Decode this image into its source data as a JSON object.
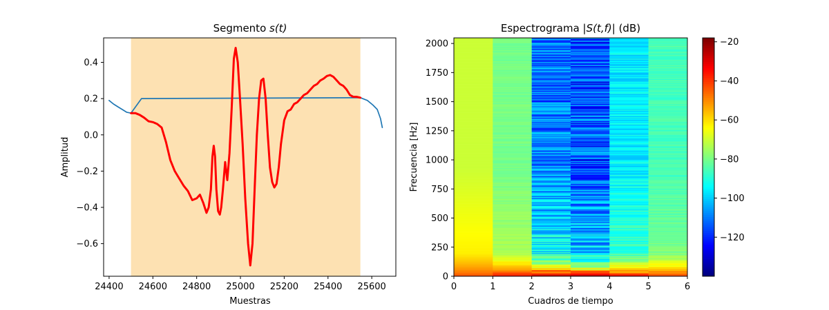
{
  "chart_data": [
    {
      "type": "line",
      "title": "Segmento s(t)",
      "title_prefix": "Segmento ",
      "title_var": "s(t)",
      "xlabel": "Muestras",
      "ylabel": "Amplitud",
      "xlim": [
        24375,
        25710
      ],
      "ylim": [
        -0.78,
        0.535
      ],
      "xticks": [
        24400,
        24600,
        24800,
        25000,
        25200,
        25400,
        25600
      ],
      "yticks": [
        -0.6,
        -0.4,
        -0.2,
        0.0,
        0.2,
        0.4
      ],
      "highlight": {
        "x_start": 24500,
        "x_end": 25548,
        "color": "#fde1b2"
      },
      "series": [
        {
          "color": "#1f77b4",
          "linewidth": 1.7,
          "points": [
            [
              24400,
              0.19
            ],
            [
              24420,
              0.17
            ],
            [
              24440,
              0.155
            ],
            [
              24460,
              0.14
            ],
            [
              24480,
              0.125
            ],
            [
              24500,
              0.12
            ],
            [
              24548,
              0.2
            ],
            [
              25548,
              0.205
            ],
            [
              25580,
              0.19
            ],
            [
              25605,
              0.165
            ],
            [
              25625,
              0.14
            ],
            [
              25640,
              0.09
            ],
            [
              25648,
              0.04
            ]
          ]
        },
        {
          "color": "#ff0000",
          "linewidth": 3,
          "points": [
            [
              24500,
              0.12
            ],
            [
              24520,
              0.12
            ],
            [
              24540,
              0.11
            ],
            [
              24560,
              0.095
            ],
            [
              24580,
              0.075
            ],
            [
              24600,
              0.07
            ],
            [
              24620,
              0.06
            ],
            [
              24640,
              0.04
            ],
            [
              24660,
              -0.04
            ],
            [
              24680,
              -0.14
            ],
            [
              24700,
              -0.2
            ],
            [
              24720,
              -0.24
            ],
            [
              24740,
              -0.28
            ],
            [
              24760,
              -0.31
            ],
            [
              24780,
              -0.36
            ],
            [
              24800,
              -0.35
            ],
            [
              24815,
              -0.33
            ],
            [
              24830,
              -0.375
            ],
            [
              24845,
              -0.43
            ],
            [
              24855,
              -0.4
            ],
            [
              24865,
              -0.3
            ],
            [
              24872,
              -0.12
            ],
            [
              24878,
              -0.06
            ],
            [
              24884,
              -0.12
            ],
            [
              24890,
              -0.3
            ],
            [
              24898,
              -0.42
            ],
            [
              24906,
              -0.44
            ],
            [
              24912,
              -0.4
            ],
            [
              24920,
              -0.3
            ],
            [
              24930,
              -0.15
            ],
            [
              24940,
              -0.25
            ],
            [
              24950,
              -0.1
            ],
            [
              24960,
              0.15
            ],
            [
              24970,
              0.42
            ],
            [
              24978,
              0.48
            ],
            [
              24988,
              0.4
            ],
            [
              24998,
              0.2
            ],
            [
              25010,
              -0.05
            ],
            [
              25022,
              -0.35
            ],
            [
              25035,
              -0.6
            ],
            [
              25045,
              -0.72
            ],
            [
              25055,
              -0.6
            ],
            [
              25065,
              -0.3
            ],
            [
              25075,
              0.0
            ],
            [
              25085,
              0.2
            ],
            [
              25095,
              0.3
            ],
            [
              25105,
              0.31
            ],
            [
              25115,
              0.2
            ],
            [
              25125,
              0.0
            ],
            [
              25135,
              -0.18
            ],
            [
              25145,
              -0.26
            ],
            [
              25155,
              -0.29
            ],
            [
              25165,
              -0.27
            ],
            [
              25175,
              -0.18
            ],
            [
              25185,
              -0.05
            ],
            [
              25200,
              0.08
            ],
            [
              25215,
              0.13
            ],
            [
              25230,
              0.14
            ],
            [
              25245,
              0.17
            ],
            [
              25260,
              0.18
            ],
            [
              25275,
              0.2
            ],
            [
              25290,
              0.22
            ],
            [
              25305,
              0.23
            ],
            [
              25320,
              0.25
            ],
            [
              25335,
              0.27
            ],
            [
              25350,
              0.28
            ],
            [
              25365,
              0.3
            ],
            [
              25380,
              0.31
            ],
            [
              25395,
              0.325
            ],
            [
              25410,
              0.33
            ],
            [
              25425,
              0.32
            ],
            [
              25440,
              0.3
            ],
            [
              25455,
              0.28
            ],
            [
              25470,
              0.27
            ],
            [
              25485,
              0.25
            ],
            [
              25500,
              0.22
            ],
            [
              25515,
              0.21
            ],
            [
              25530,
              0.21
            ],
            [
              25548,
              0.205
            ]
          ]
        }
      ]
    },
    {
      "type": "heatmap",
      "title": "Espectrograma |S(t,f)| (dB)",
      "title_pre": "Espectrograma ",
      "title_var": "|S(t,f)|",
      "title_post": " (dB)",
      "xlabel": "Cuadros de tiempo",
      "ylabel": "Frecuencia [Hz]",
      "xlim": [
        0,
        6
      ],
      "ylim": [
        0,
        2048
      ],
      "xticks": [
        0,
        1,
        2,
        3,
        4,
        5,
        6
      ],
      "yticks": [
        0,
        250,
        500,
        750,
        1000,
        1250,
        1500,
        1750,
        2000
      ],
      "colormap": "jet",
      "vmin": -140,
      "vmax": -18,
      "colorbar_ticks": [
        -120,
        -100,
        -80,
        -60,
        -40,
        -20
      ],
      "frames": [
        {
          "frame": "0-1",
          "low_db": -40,
          "mid_db": -62,
          "high_db": -70,
          "noise_db": 0
        },
        {
          "frame": "1-2",
          "low_db": -30,
          "mid_db": -74,
          "high_db": -80,
          "noise_db": 2
        },
        {
          "frame": "2-3",
          "low_db": -20,
          "mid_db": -95,
          "high_db": -110,
          "noise_db": 12
        },
        {
          "frame": "3-4",
          "low_db": -20,
          "mid_db": -100,
          "high_db": -115,
          "noise_db": 14
        },
        {
          "frame": "4-5",
          "low_db": -30,
          "mid_db": -88,
          "high_db": -96,
          "noise_db": 6
        },
        {
          "frame": "5-6",
          "low_db": -35,
          "mid_db": -80,
          "high_db": -86,
          "noise_db": 3
        }
      ]
    }
  ]
}
